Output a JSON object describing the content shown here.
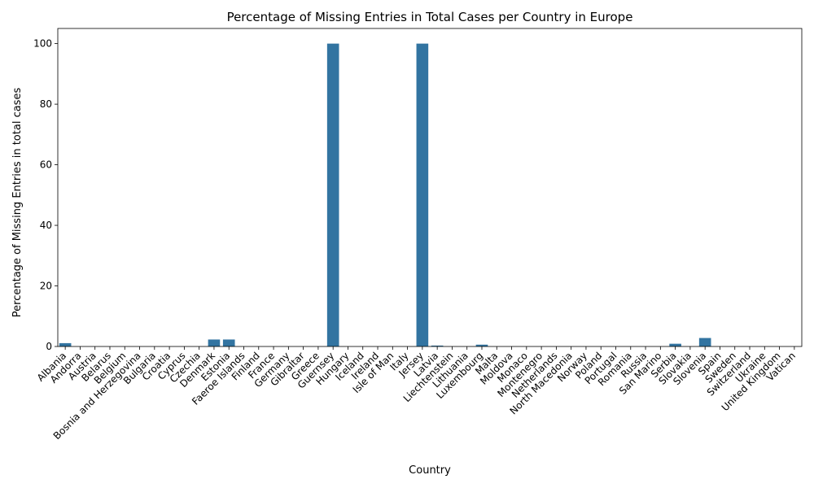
{
  "chart_data": {
    "type": "bar",
    "title": "Percentage of Missing Entries in Total Cases per Country in Europe",
    "xlabel": "Country",
    "ylabel": "Percentage of Missing Entries in total cases",
    "ylim": [
      0,
      105
    ],
    "yticks": [
      "0",
      "20",
      "40",
      "60",
      "80",
      "100"
    ],
    "grid": false,
    "bar_color": "#3274a1",
    "categories": [
      "Albania",
      "Andorra",
      "Austria",
      "Belarus",
      "Belgium",
      "Bosnia and Herzegovina",
      "Bulgaria",
      "Croatia",
      "Cyprus",
      "Czechia",
      "Denmark",
      "Estonia",
      "Faeroe Islands",
      "Finland",
      "France",
      "Germany",
      "Gibraltar",
      "Greece",
      "Guernsey",
      "Hungary",
      "Iceland",
      "Ireland",
      "Isle of Man",
      "Italy",
      "Jersey",
      "Latvia",
      "Liechtenstein",
      "Lithuania",
      "Luxembourg",
      "Malta",
      "Moldova",
      "Monaco",
      "Montenegro",
      "Netherlands",
      "North Macedonia",
      "Norway",
      "Poland",
      "Portugal",
      "Romania",
      "Russia",
      "San Marino",
      "Serbia",
      "Slovakia",
      "Slovenia",
      "Spain",
      "Sweden",
      "Switzerland",
      "Ukraine",
      "United Kingdom",
      "Vatican"
    ],
    "values": [
      1.1,
      0,
      0,
      0,
      0,
      0,
      0,
      0,
      0,
      0,
      2.3,
      2.3,
      0,
      0,
      0,
      0,
      0,
      0,
      100,
      0,
      0,
      0,
      0,
      0,
      100,
      0.3,
      0,
      0,
      0.6,
      0,
      0,
      0,
      0,
      0,
      0,
      0,
      0,
      0,
      0,
      0,
      0,
      0.9,
      0,
      2.8,
      0,
      0,
      0,
      0,
      0,
      0
    ]
  }
}
